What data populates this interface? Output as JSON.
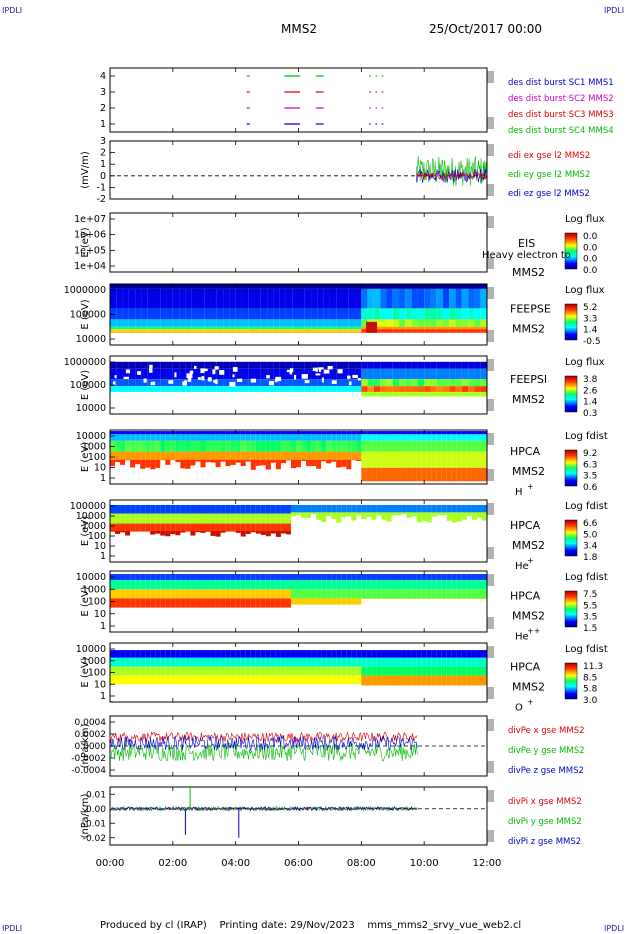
{
  "header": {
    "corner_label": "IPDLI",
    "spacecraft": "MMS2",
    "date_time": "25/Oct/2017 00:00"
  },
  "footer": {
    "produced_by": "Produced by cl (IRAP)",
    "printing_date": "Printing date: 29/Nov/2023",
    "filename": "mms_mms2_srvy_vue_web2.cl"
  },
  "time_axis": {
    "ticks": [
      "00:00",
      "02:00",
      "04:00",
      "06:00",
      "08:00",
      "10:00",
      "12:00"
    ],
    "range_hours": [
      0,
      12
    ]
  },
  "colors": {
    "mms1": "#0000cc",
    "mms2": "#cc00cc",
    "mms3": "#dd0000",
    "mms4": "#00bb00",
    "x_component": "#dd0000",
    "y_component": "#00bb00",
    "z_component": "#0000cc"
  },
  "chart_data": [
    {
      "type": "timeline",
      "panel": "burst",
      "yticks": [
        "4",
        "3",
        "2",
        "1"
      ],
      "legend": [
        "des dist burst SC1 MMS1",
        "des dist burst SC2 MMS2",
        "des dist burst SC3 MMS3",
        "des dist burst SC4 MMS4"
      ],
      "intervals_hours": [
        [
          4.35,
          4.45
        ],
        [
          5.55,
          6.05
        ],
        [
          6.55,
          6.8
        ],
        [
          8.25,
          8.3
        ],
        [
          8.45,
          8.5
        ],
        [
          8.65,
          8.7
        ]
      ]
    },
    {
      "type": "line",
      "panel": "edi",
      "ylabel": "(mV/m)",
      "yticks": [
        "3",
        "2",
        "1",
        "0",
        "-1",
        "-2"
      ],
      "ylim": [
        -2,
        3
      ],
      "legend": [
        "edi ex gse l2 MMS2",
        "edi ey gse l2 MMS2",
        "edi ez gse l2 MMS2"
      ],
      "data_start_hours": 9.75,
      "data_end_hours": 12.0
    },
    {
      "type": "heatmap",
      "panel": "eis",
      "ylabel": "E (eV)",
      "yticks": [
        "1e+07",
        "1e+06",
        "1e+05",
        "1e+04"
      ],
      "instrument": "EIS",
      "species_text": "Heavy electron to",
      "sc": "MMS2",
      "cbar_title": "Log flux",
      "cbar_ticks": [
        "0.0",
        "0.0",
        "0.0",
        "0.0"
      ]
    },
    {
      "type": "heatmap",
      "panel": "feepse",
      "ylabel": "E (eV)",
      "yticks": [
        "1000000",
        "100000",
        "10000"
      ],
      "instrument": "FEEPSE",
      "sc": "MMS2",
      "cbar_title": "Log flux",
      "cbar_ticks": [
        "5.2",
        "3.3",
        "1.4",
        "-0.5"
      ]
    },
    {
      "type": "heatmap",
      "panel": "feepsi",
      "ylabel": "E (eV)",
      "yticks": [
        "1000000",
        "100000",
        "10000"
      ],
      "instrument": "FEEPSI",
      "sc": "MMS2",
      "cbar_title": "Log flux",
      "cbar_ticks": [
        "3.8",
        "2.6",
        "1.4",
        "0.3"
      ]
    },
    {
      "type": "heatmap",
      "panel": "hpca_h",
      "ylabel": "E (eV)",
      "yticks": [
        "10000",
        "1000",
        "100",
        "10",
        "1"
      ],
      "instrument": "HPCA",
      "sc": "MMS2",
      "species": "H",
      "charge": "+",
      "cbar_title": "Log fdist",
      "cbar_ticks": [
        "9.2",
        "6.3",
        "3.5",
        "0.6"
      ]
    },
    {
      "type": "heatmap",
      "panel": "hpca_he",
      "ylabel": "E (eV)",
      "yticks": [
        "100000",
        "10000",
        "1000",
        "100",
        "10",
        "1"
      ],
      "instrument": "HPCA",
      "sc": "MMS2",
      "species": "He",
      "charge": "+",
      "cbar_title": "Log fdist",
      "cbar_ticks": [
        "6.6",
        "5.0",
        "3.4",
        "1.8"
      ]
    },
    {
      "type": "heatmap",
      "panel": "hpca_he2",
      "ylabel": "E (eV)",
      "yticks": [
        "10000",
        "1000",
        "100",
        "10",
        "1"
      ],
      "instrument": "HPCA",
      "sc": "MMS2",
      "species": "He",
      "charge": "++",
      "cbar_title": "Log fdist",
      "cbar_ticks": [
        "7.5",
        "5.5",
        "3.5",
        "1.5"
      ]
    },
    {
      "type": "heatmap",
      "panel": "hpca_o",
      "ylabel": "E (eV)",
      "yticks": [
        "10000",
        "1000",
        "100",
        "10",
        "1"
      ],
      "instrument": "HPCA",
      "sc": "MMS2",
      "species": "O",
      "charge": "+",
      "cbar_title": "Log fdist",
      "cbar_ticks": [
        "11.3",
        "8.5",
        "5.8",
        "3.0"
      ]
    },
    {
      "type": "line",
      "panel": "divpe",
      "ylabel": "(nPa/km)",
      "yticks": [
        "0.0004",
        "0.0002",
        "0.0000",
        "-0.0002",
        "-0.0004"
      ],
      "ylim": [
        -0.0005,
        0.0005
      ],
      "legend": [
        "divPe x gse MMS2",
        "divPe y gse MMS2",
        "divPe z gse MMS2"
      ],
      "data_end_hours": 9.8
    },
    {
      "type": "line",
      "panel": "divpi",
      "ylabel": "(nPa/km)",
      "yticks": [
        "0.01",
        "0.00",
        "-0.01",
        "-0.02"
      ],
      "ylim": [
        -0.025,
        0.015
      ],
      "legend": [
        "divPi x gse MMS2",
        "divPi y gse MMS2",
        "divPi z gse MMS2"
      ],
      "data_end_hours": 9.8
    }
  ]
}
